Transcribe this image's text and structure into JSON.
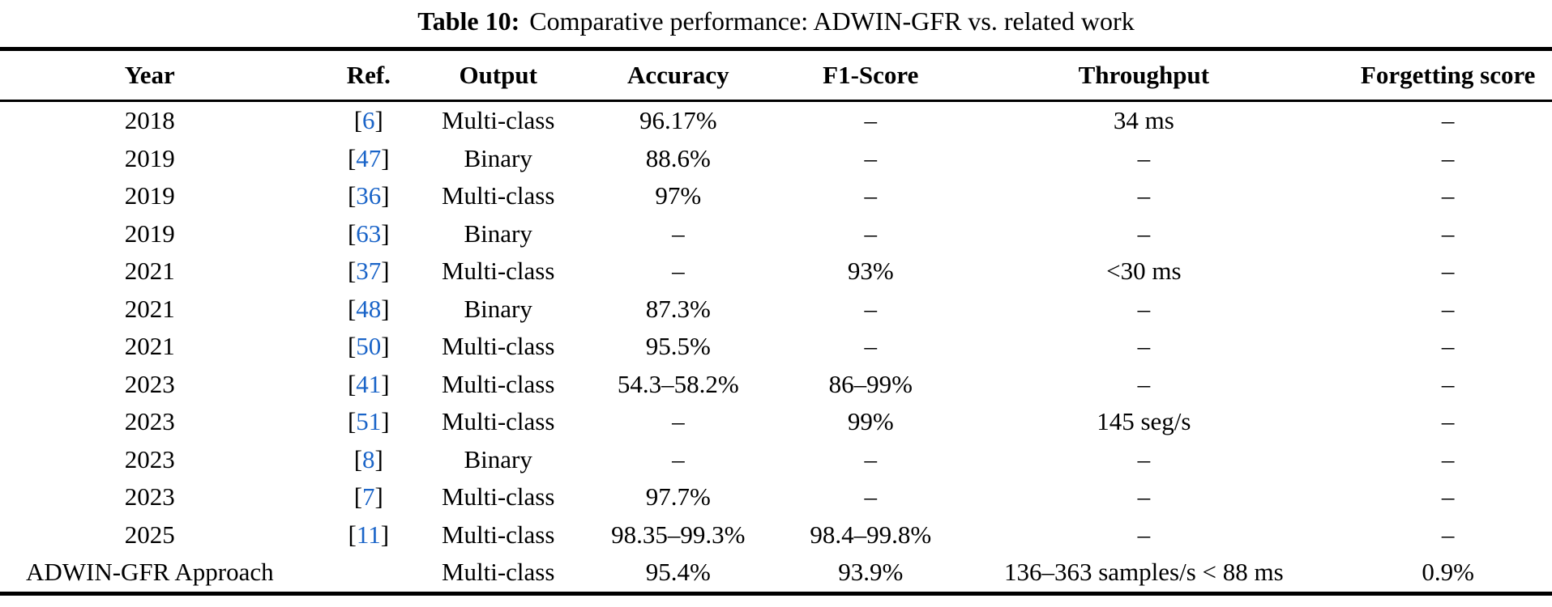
{
  "caption": {
    "label": "Table 10:",
    "text": "Comparative performance: ADWIN-GFR vs. related work"
  },
  "table": {
    "columns": [
      "Year",
      "Ref.",
      "Output",
      "Accuracy",
      "F1-Score",
      "Throughput",
      "Forgetting score"
    ],
    "rows": [
      {
        "year": "2018",
        "ref": "6",
        "output": "Multi-class",
        "accuracy": "96.17%",
        "f1": "–",
        "throughput": "34 ms",
        "forgetting": "–"
      },
      {
        "year": "2019",
        "ref": "47",
        "output": "Binary",
        "accuracy": "88.6%",
        "f1": "–",
        "throughput": "–",
        "forgetting": "–"
      },
      {
        "year": "2019",
        "ref": "36",
        "output": "Multi-class",
        "accuracy": "97%",
        "f1": "–",
        "throughput": "–",
        "forgetting": "–"
      },
      {
        "year": "2019",
        "ref": "63",
        "output": "Binary",
        "accuracy": "–",
        "f1": "–",
        "throughput": "–",
        "forgetting": "–"
      },
      {
        "year": "2021",
        "ref": "37",
        "output": "Multi-class",
        "accuracy": "–",
        "f1": "93%",
        "throughput": "<30 ms",
        "forgetting": "–"
      },
      {
        "year": "2021",
        "ref": "48",
        "output": "Binary",
        "accuracy": "87.3%",
        "f1": "–",
        "throughput": "–",
        "forgetting": "–"
      },
      {
        "year": "2021",
        "ref": "50",
        "output": "Multi-class",
        "accuracy": "95.5%",
        "f1": "–",
        "throughput": "–",
        "forgetting": "–"
      },
      {
        "year": "2023",
        "ref": "41",
        "output": "Multi-class",
        "accuracy": "54.3–58.2%",
        "f1": "86–99%",
        "throughput": "–",
        "forgetting": "–"
      },
      {
        "year": "2023",
        "ref": "51",
        "output": "Multi-class",
        "accuracy": "–",
        "f1": "99%",
        "throughput": "145 seg/s",
        "forgetting": "–"
      },
      {
        "year": "2023",
        "ref": "8",
        "output": "Binary",
        "accuracy": "–",
        "f1": "–",
        "throughput": "–",
        "forgetting": "–"
      },
      {
        "year": "2023",
        "ref": "7",
        "output": "Multi-class",
        "accuracy": "97.7%",
        "f1": "–",
        "throughput": "–",
        "forgetting": "–"
      },
      {
        "year": "2025",
        "ref": "11",
        "output": "Multi-class",
        "accuracy": "98.35–99.3%",
        "f1": "98.4–99.8%",
        "throughput": "–",
        "forgetting": "–"
      },
      {
        "year": "ADWIN-GFR Approach",
        "ref": "",
        "output": "Multi-class",
        "accuracy": "95.4%",
        "f1": "93.9%",
        "throughput": "136–363 samples/s < 88 ms",
        "forgetting": "0.9%"
      }
    ]
  },
  "colors": {
    "ref_link": "#1a64c8",
    "text": "#000000",
    "background": "#ffffff"
  }
}
